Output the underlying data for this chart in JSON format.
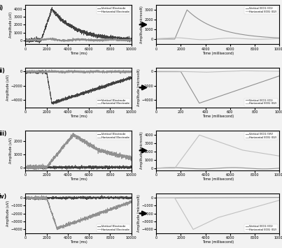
{
  "background": "#f0f0f0",
  "plot_bg": "#f0f0f0",
  "row_labels": [
    "i)",
    "ii)",
    "iii)",
    "iv)"
  ],
  "unfilt_vert_color": "#404040",
  "unfilt_horiz_color": "#909090",
  "filt_vert_color": "#909090",
  "filt_horiz_color": "#c0c0c0",
  "linewidth_unfilt": 0.5,
  "linewidth_filt": 0.8,
  "font_size_tick": 3.5,
  "font_size_label": 3.5,
  "font_size_legend": 2.8,
  "font_size_rowlabel": 5.5,
  "rows": [
    {
      "unfilt_ylabel": "Amplitude (uV)",
      "unfilt_xlabel": "Time (ms)",
      "unfilt_xlim": [
        0,
        10000
      ],
      "unfilt_ylim": [
        -500,
        4500
      ],
      "unfilt_legend_loc": "upper right",
      "unfilt_legend": [
        "Vertical Electrode",
        "Horizontal Electrode"
      ],
      "filt_ylabel": "Amplitude (microvolt)",
      "filt_xlabel": "Time (millisecond)",
      "filt_xlim": [
        0,
        10000
      ],
      "filt_ylim": [
        -500,
        3500
      ],
      "filt_legend_loc": "upper right",
      "filt_legend": [
        "Vertical EOG (01)",
        "Horizontal EOG (02)"
      ]
    },
    {
      "unfilt_ylabel": "Amplitude (uV)",
      "unfilt_xlabel": "Time (ms)",
      "unfilt_xlim": [
        0,
        10000
      ],
      "unfilt_ylim": [
        -5000,
        500
      ],
      "unfilt_legend_loc": "lower right",
      "unfilt_legend": [
        "Vertical Electrode",
        "Horizontal Electrode"
      ],
      "filt_ylabel": "Amplitude (microvolt)",
      "filt_xlabel": "Time (millisecond)",
      "filt_xlim": [
        0,
        1000
      ],
      "filt_ylim": [
        -5000,
        500
      ],
      "filt_legend_loc": "lower right",
      "filt_legend": [
        "Vertical EOG (01)",
        "Horizontal EOG (02)"
      ]
    },
    {
      "unfilt_ylabel": "Amplitude (uV)",
      "unfilt_xlabel": "Time (ms)",
      "unfilt_xlim": [
        0,
        10000
      ],
      "unfilt_ylim": [
        -200,
        2800
      ],
      "unfilt_legend_loc": "upper right",
      "unfilt_legend": [
        "Vertical Electrode",
        "Horizontal Electrode"
      ],
      "filt_ylabel": "Amplitude (microvolt)",
      "filt_xlabel": "Time (millisecond)",
      "filt_xlim": [
        0,
        10000
      ],
      "filt_ylim": [
        -200,
        4500
      ],
      "filt_legend_loc": "upper right",
      "filt_legend": [
        "Vertical EOG (VV)",
        "Horizontal EOG (02)"
      ]
    },
    {
      "unfilt_ylabel": "Amplitude (uV)",
      "unfilt_xlabel": "Time (ms)",
      "unfilt_xlim": [
        0,
        10000
      ],
      "unfilt_ylim": [
        -4500,
        500
      ],
      "unfilt_legend_loc": "lower right",
      "unfilt_legend": [
        "Vertical Electrode",
        "Horizontal Electrode"
      ],
      "filt_ylabel": "Amplitude (microvolt)",
      "filt_xlabel": "Time (millisecond)",
      "filt_xlim": [
        0,
        10000
      ],
      "filt_ylim": [
        -4500,
        500
      ],
      "filt_legend_loc": "lower right",
      "filt_legend": [
        "Vertical EOG (01)",
        "Horizontal EOG (02)"
      ]
    }
  ]
}
